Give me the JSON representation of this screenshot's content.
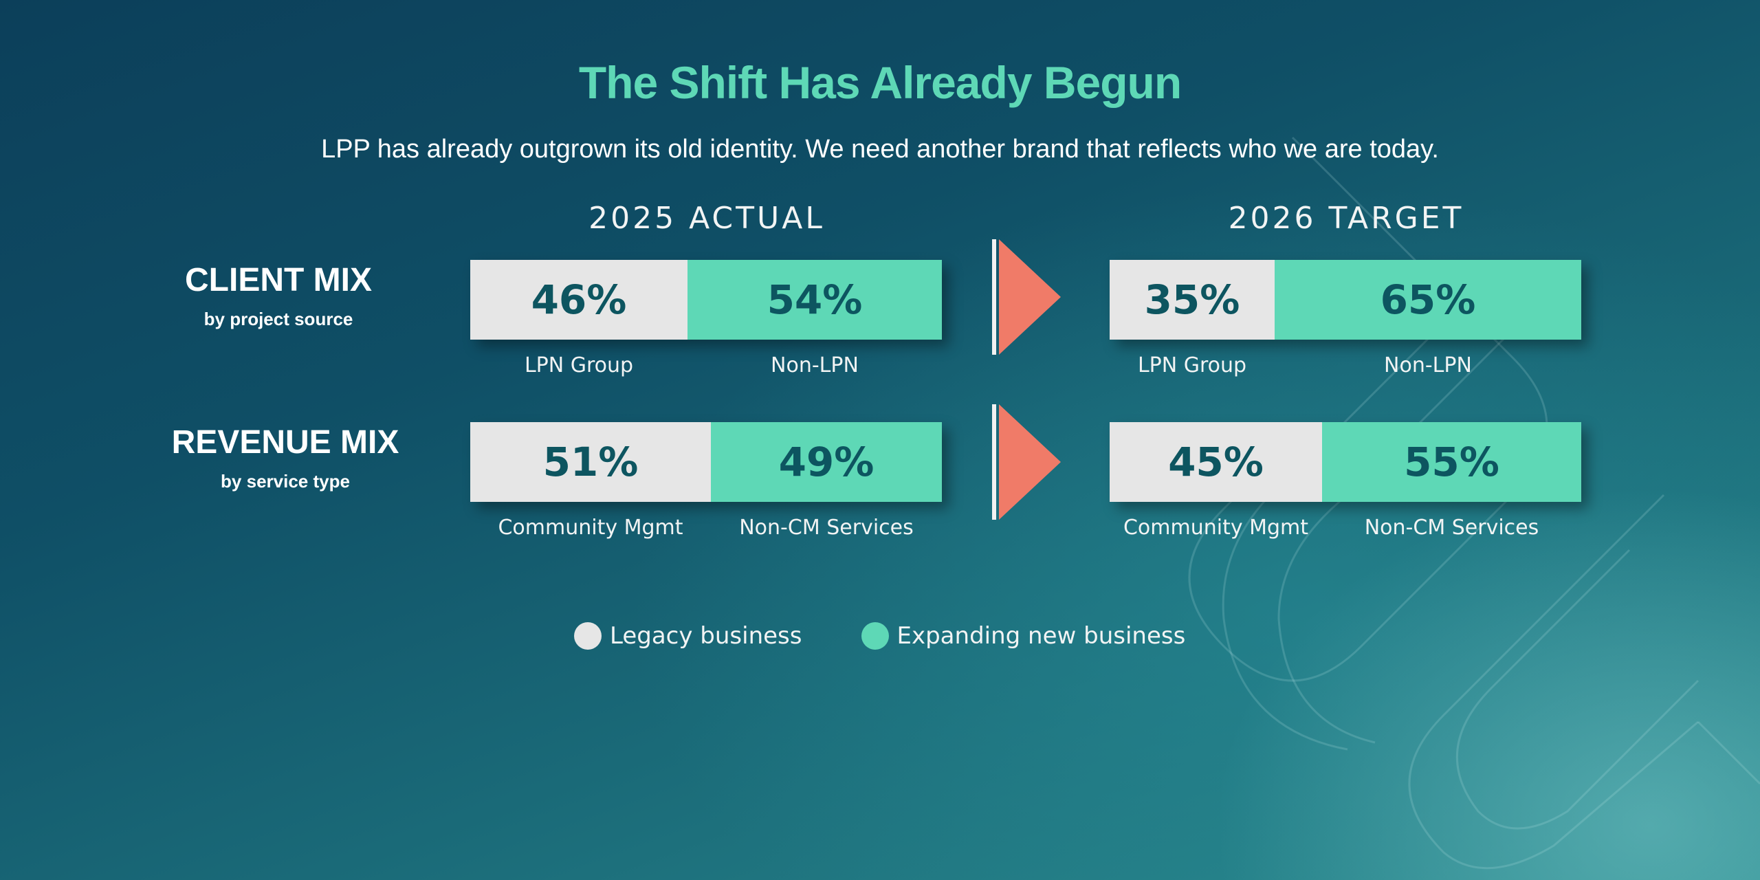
{
  "title": "The Shift Has Already Begun",
  "subtitle": "LPP has already outgrown its old identity. We need another brand that reflects who we are today.",
  "colors": {
    "title": "#5ed8b6",
    "legacy": "#e6e6e6",
    "new": "#5ed8b6",
    "value_text": "#0d5560",
    "arrow": "#f07b68",
    "background": "#0f4f66"
  },
  "columns": [
    "2025  ACTUAL",
    "2026  TARGET"
  ],
  "rows": [
    {
      "title": "CLIENT MIX",
      "subtitle": "by project source"
    },
    {
      "title": "REVENUE MIX",
      "subtitle": "by service type"
    }
  ],
  "chart_data": {
    "type": "bar",
    "orientation": "horizontal-stacked-100",
    "title": "The Shift Has Already Begun",
    "legend": {
      "placement": "bottom-center",
      "entries": [
        "Legacy business",
        "Expanding new business"
      ]
    },
    "panels": [
      {
        "row": "CLIENT MIX",
        "column": "2025  ACTUAL",
        "segments": [
          {
            "name": "LPN Group",
            "value": 46,
            "label": "46%",
            "kind": "legacy"
          },
          {
            "name": "Non-LPN",
            "value": 54,
            "label": "54%",
            "kind": "new"
          }
        ]
      },
      {
        "row": "CLIENT MIX",
        "column": "2026  TARGET",
        "segments": [
          {
            "name": "LPN Group",
            "value": 35,
            "label": "35%",
            "kind": "legacy"
          },
          {
            "name": "Non-LPN",
            "value": 65,
            "label": "65%",
            "kind": "new"
          }
        ]
      },
      {
        "row": "REVENUE MIX",
        "column": "2025  ACTUAL",
        "segments": [
          {
            "name": "Community Mgmt",
            "value": 51,
            "label": "51%",
            "kind": "legacy"
          },
          {
            "name": "Non-CM Services",
            "value": 49,
            "label": "49%",
            "kind": "new"
          }
        ]
      },
      {
        "row": "REVENUE MIX",
        "column": "2026  TARGET",
        "segments": [
          {
            "name": "Community Mgmt",
            "value": 45,
            "label": "45%",
            "kind": "legacy"
          },
          {
            "name": "Non-CM Services",
            "value": 55,
            "label": "55%",
            "kind": "new"
          }
        ]
      }
    ]
  },
  "legend": {
    "legacy_label": "Legacy business",
    "new_label": "Expanding new business"
  }
}
